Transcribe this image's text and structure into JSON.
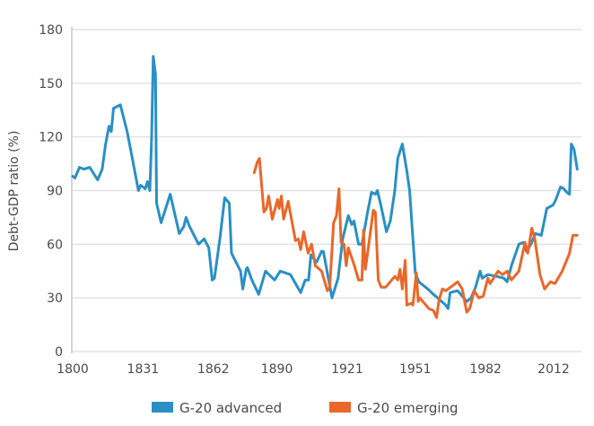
{
  "chart_data": {
    "type": "line",
    "title": "",
    "xlabel": "",
    "ylabel": "Debt-GDP ratio (%)",
    "xlim": [
      1800,
      2023
    ],
    "ylim": [
      0,
      180
    ],
    "xticks": [
      1800,
      1831,
      1862,
      1890,
      1921,
      1951,
      1982,
      2012
    ],
    "yticks": [
      0,
      30,
      60,
      90,
      120,
      150,
      180
    ],
    "grid": "horizontal",
    "legend": "bottom",
    "series": [
      {
        "name": "G-20 advanced",
        "color": "#2b8fc3",
        "x": [
          1800,
          1801,
          1803,
          1805,
          1807.5,
          1811,
          1813,
          1814.5,
          1816,
          1817,
          1818,
          1821,
          1824,
          1826,
          1829,
          1830,
          1832,
          1833,
          1834,
          1834.8,
          1835.5,
          1836.5,
          1837,
          1839,
          1843,
          1847,
          1849,
          1850,
          1851.5,
          1855.5,
          1858,
          1860,
          1861.5,
          1862.5,
          1865,
          1867,
          1869,
          1870,
          1874,
          1875,
          1876.5,
          1877,
          1879,
          1882,
          1885,
          1889,
          1891.5,
          1896,
          1900.5,
          1902.5,
          1904,
          1905,
          1907.5,
          1909.7,
          1910.5,
          1914.3,
          1917,
          1919,
          1921.5,
          1923,
          1924,
          1926,
          1927.5,
          1930,
          1931.7,
          1933.5,
          1934.3,
          1936,
          1938.3,
          1940,
          1942,
          1943.3,
          1945.3,
          1947.3,
          1948.5,
          1951,
          1952.6,
          1956.5,
          1959,
          1960,
          1964.4,
          1965.5,
          1966.4,
          1969.7,
          1973.7,
          1975.6,
          1977.6,
          1979.6,
          1980.5,
          1983,
          1987,
          1990,
          1991.5,
          1993.4,
          1996.7,
          1998.7,
          2000,
          2002,
          2004,
          2006.6,
          2009,
          2011.8,
          2013,
          2015,
          2016.5,
          2017.8,
          2019,
          2019.8,
          2021,
          2022.4
        ],
        "y": [
          98,
          97,
          103,
          102,
          103,
          96,
          102,
          116,
          126,
          123,
          136,
          138,
          123,
          110,
          90,
          93,
          91,
          95,
          90,
          120,
          165,
          155,
          83,
          72,
          88,
          66,
          70,
          75,
          70,
          60,
          63,
          58,
          40,
          41,
          64,
          86,
          83,
          55,
          45,
          35,
          46,
          47,
          40,
          32,
          45,
          40,
          45,
          43,
          33,
          40,
          40,
          54,
          50,
          56,
          56,
          30,
          41,
          63,
          76,
          71,
          73,
          60,
          60,
          78,
          89,
          88,
          90,
          81,
          67,
          73,
          90,
          108,
          116,
          101,
          90,
          44,
          39,
          35,
          32,
          31,
          26,
          24,
          33,
          34,
          28,
          30,
          36,
          45,
          41,
          43,
          42,
          41,
          39,
          48,
          60,
          61,
          56,
          60,
          66,
          65,
          80,
          82,
          85,
          92,
          91,
          89,
          88,
          116,
          113,
          102
        ]
      },
      {
        "name": "G-20 emerging",
        "color": "#e8682a",
        "x": [
          1880,
          1881.4,
          1882.3,
          1884.3,
          1885.4,
          1886.4,
          1888,
          1890.3,
          1891,
          1892,
          1893,
          1895,
          1898.2,
          1899.5,
          1900.5,
          1901.8,
          1903.8,
          1905.3,
          1907,
          1909.7,
          1912.3,
          1913.3,
          1915,
          1916.3,
          1917.4,
          1918.3,
          1919.6,
          1920.6,
          1921.5,
          1924.2,
          1926,
          1927.5,
          1928.2,
          1929,
          1930,
          1932.5,
          1933.4,
          1934.7,
          1936,
          1938,
          1942,
          1943.3,
          1944.3,
          1945.3,
          1946.6,
          1947.3,
          1949.3,
          1950,
          1951.5,
          1952.3,
          1953,
          1955,
          1957,
          1959,
          1960.4,
          1961.5,
          1963,
          1964.5,
          1965.5,
          1967.7,
          1969.7,
          1971.7,
          1973.7,
          1975,
          1977,
          1979,
          1981,
          1983,
          1984,
          1987.5,
          1989.5,
          1991.5,
          1993.4,
          1996.7,
          1999.4,
          2000.6,
          2002.4,
          2003.7,
          2006,
          2008,
          2010.6,
          2012.6,
          2015.8,
          2019,
          2020.5,
          2022.4
        ],
        "y": [
          100,
          106,
          108,
          78,
          80,
          87,
          74,
          85,
          80,
          87,
          74,
          84,
          62,
          63,
          57,
          67,
          55,
          60,
          48,
          45,
          34,
          36,
          72,
          76,
          91,
          61,
          60,
          48,
          58,
          48,
          40,
          40,
          68,
          46,
          55,
          79,
          78,
          40,
          36,
          36,
          42,
          40,
          46,
          35,
          51,
          26,
          27,
          26,
          44,
          28,
          30,
          27,
          24,
          23,
          19,
          29,
          35,
          34,
          35,
          37,
          39,
          35,
          22,
          24,
          34,
          30,
          31,
          41,
          38,
          45,
          43,
          45,
          40,
          45,
          61,
          55,
          69,
          63,
          43,
          35,
          39,
          38,
          45,
          55,
          65,
          65
        ]
      }
    ]
  }
}
